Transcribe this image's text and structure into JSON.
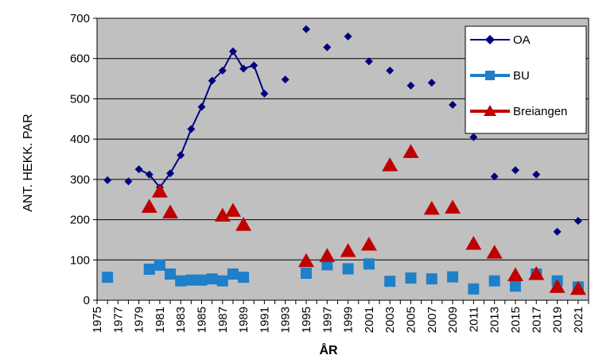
{
  "chart_data": {
    "type": "scatter",
    "xlabel": "ÅR",
    "ylabel": "ANT. HEKK. PAR",
    "xlim": [
      1975,
      2022
    ],
    "ylim": [
      0,
      700
    ],
    "x_ticks": [
      "1975",
      "1977",
      "1979",
      "1981",
      "1983",
      "1985",
      "1987",
      "1989",
      "1991",
      "1993",
      "1995",
      "1997",
      "1999",
      "2001",
      "2003",
      "2005",
      "2007",
      "2009",
      "2011",
      "2013",
      "2015",
      "2017",
      "2019",
      "2021"
    ],
    "y_ticks": [
      "0",
      "100",
      "200",
      "300",
      "400",
      "500",
      "600",
      "700"
    ],
    "grid": "horizontal",
    "legend_position": "top-right",
    "plot_background": "#c0c0c0",
    "series": [
      {
        "name": "OA",
        "color": "#000080",
        "marker": "diamond",
        "x": [
          1976,
          1978,
          1979,
          1980,
          1981,
          1982,
          1983,
          1984,
          1985,
          1986,
          1987,
          1988,
          1989,
          1990,
          1991,
          1993,
          1995,
          1997,
          1999,
          2001,
          2003,
          2005,
          2007,
          2009,
          2011,
          2013,
          2015,
          2017,
          2019,
          2021
        ],
        "y": [
          298,
          295,
          325,
          312,
          280,
          315,
          360,
          425,
          480,
          545,
          570,
          618,
          575,
          583,
          513,
          548,
          673,
          628,
          655,
          593,
          570,
          533,
          540,
          485,
          405,
          307,
          323,
          312,
          170,
          197
        ],
        "connected_segments": [
          [
            1979,
            1991
          ]
        ]
      },
      {
        "name": "BU",
        "color": "#1f7fc8",
        "marker": "square",
        "x": [
          1976,
          1980,
          1981,
          1982,
          1983,
          1984,
          1985,
          1986,
          1987,
          1988,
          1989,
          1995,
          1997,
          1999,
          2001,
          2003,
          2005,
          2007,
          2009,
          2011,
          2013,
          2015,
          2017,
          2019,
          2021
        ],
        "y": [
          57,
          77,
          87,
          65,
          48,
          50,
          50,
          53,
          48,
          65,
          57,
          67,
          88,
          78,
          90,
          47,
          55,
          53,
          58,
          28,
          48,
          35,
          65,
          48,
          33
        ]
      },
      {
        "name": "Breiangen",
        "color": "#c00000",
        "marker": "triangle",
        "x": [
          1980,
          1981,
          1982,
          1987,
          1988,
          1989,
          1995,
          1997,
          1999,
          2001,
          2003,
          2005,
          2007,
          2009,
          2011,
          2013,
          2015,
          2017,
          2019,
          2021
        ],
        "y": [
          232,
          270,
          218,
          210,
          222,
          187,
          97,
          110,
          122,
          138,
          335,
          368,
          227,
          230,
          140,
          118,
          62,
          65,
          33,
          28
        ]
      }
    ]
  }
}
